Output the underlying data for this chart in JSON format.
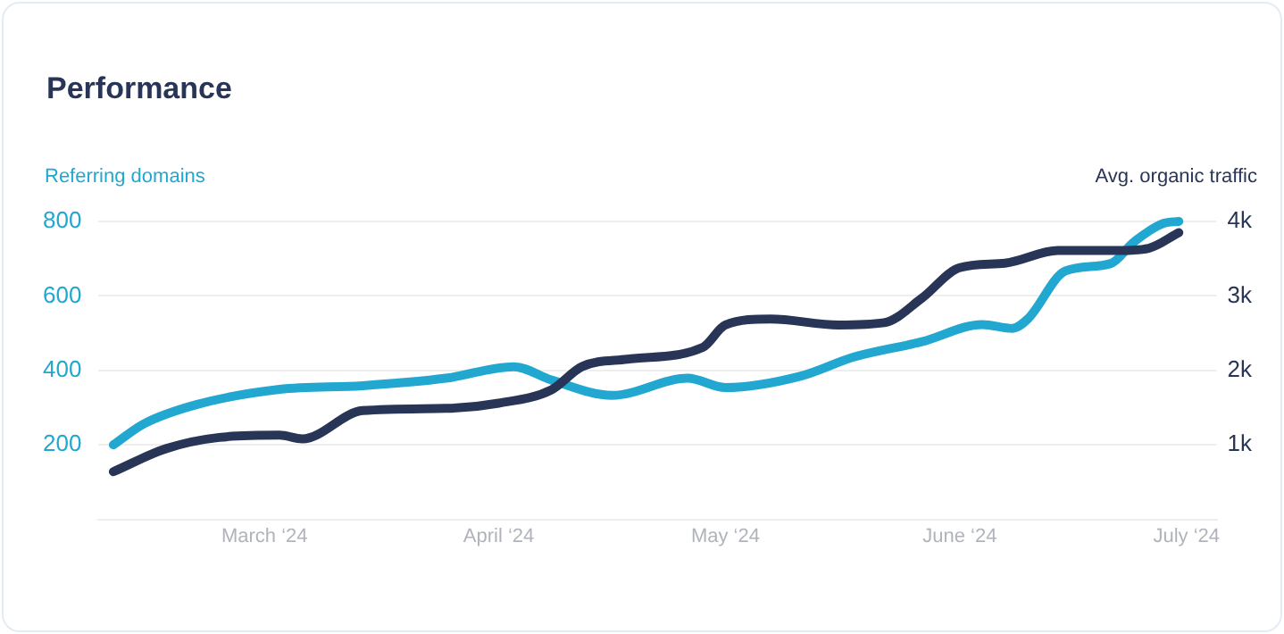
{
  "chart_data": {
    "type": "line",
    "title": "Performance",
    "ylabel": "Referring domains",
    "y2label": "Avg. organic traffic",
    "xlim": [
      "2024-02-08",
      "2024-07-05"
    ],
    "xticks": [
      {
        "value": "2024-03-01",
        "label": "March ‘24"
      },
      {
        "value": "2024-04-01",
        "label": "April ‘24"
      },
      {
        "value": "2024-05-01",
        "label": "May ‘24"
      },
      {
        "value": "2024-06-01",
        "label": "June ‘24"
      },
      {
        "value": "2024-07-01",
        "label": "July ‘24"
      }
    ],
    "ylim": [
      0,
      800
    ],
    "yticks": [
      200,
      400,
      600,
      800
    ],
    "y2lim": [
      0,
      4000
    ],
    "y2ticks": [
      {
        "value": 1000,
        "label": "1k"
      },
      {
        "value": 2000,
        "label": "2k"
      },
      {
        "value": 3000,
        "label": "3k"
      },
      {
        "value": 4000,
        "label": "4k"
      }
    ],
    "grid": "y",
    "legend": false,
    "marker": "none",
    "line_style": "solid",
    "series": [
      {
        "color": "#283556",
        "axis": "y2",
        "x": [
          "2024-02-10",
          "2024-02-17",
          "2024-02-24",
          "2024-03-03",
          "2024-03-06",
          "2024-03-14",
          "2024-03-25",
          "2024-04-01",
          "2024-04-08",
          "2024-04-12",
          "2024-04-18",
          "2024-04-28",
          "2024-05-01",
          "2024-05-07",
          "2024-05-16",
          "2024-05-22",
          "2024-05-27",
          "2024-06-01",
          "2024-06-07",
          "2024-06-14",
          "2024-06-22",
          "2024-06-26",
          "2024-06-30"
        ],
        "values": [
          640,
          950,
          1100,
          1130,
          1080,
          1460,
          1490,
          1560,
          1740,
          2050,
          2150,
          2310,
          2610,
          2690,
          2610,
          2640,
          2970,
          3380,
          3440,
          3610,
          3610,
          3640,
          3850
        ]
      },
      {
        "color": "#22a7d0",
        "axis": "y",
        "x": [
          "2024-02-10",
          "2024-02-14",
          "2024-02-21",
          "2024-03-03",
          "2024-03-14",
          "2024-03-25",
          "2024-04-03",
          "2024-04-08",
          "2024-04-16",
          "2024-04-26",
          "2024-05-01",
          "2024-05-11",
          "2024-05-18",
          "2024-05-27",
          "2024-06-04",
          "2024-06-08",
          "2024-06-10",
          "2024-06-15",
          "2024-06-21",
          "2024-06-24",
          "2024-06-28",
          "2024-06-30"
        ],
        "values": [
          200,
          256,
          308,
          349,
          359,
          379,
          410,
          374,
          333,
          379,
          354,
          385,
          436,
          477,
          523,
          513,
          538,
          667,
          687,
          744,
          795,
          800
        ]
      }
    ]
  }
}
